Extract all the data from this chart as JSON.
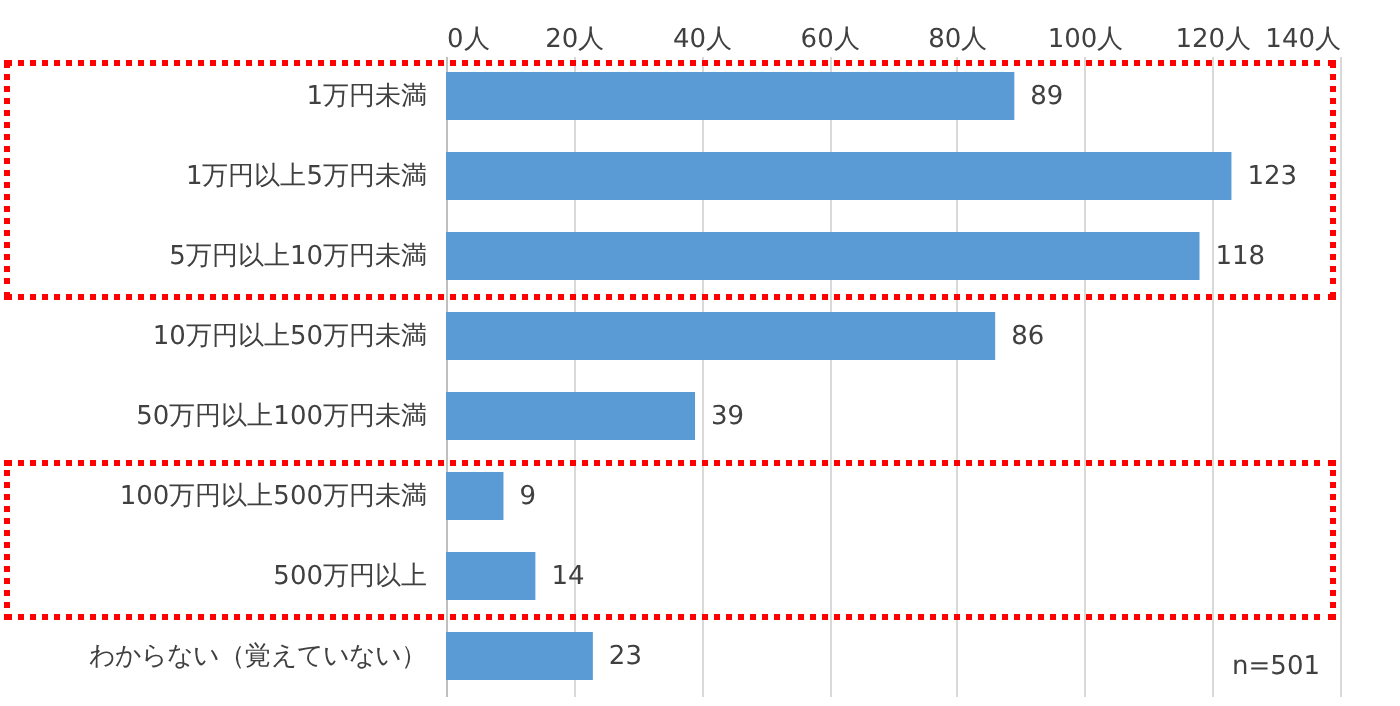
{
  "chart_data": {
    "type": "bar",
    "orientation": "horizontal",
    "categories": [
      "1万円未満",
      "1万円以上5万円未満",
      "5万円以上10万円未満",
      "10万円以上50万円未満",
      "50万円以上100万円未満",
      "100万円以上500万円未満",
      "500万円以上",
      "わからない（覚えていない）"
    ],
    "values": [
      89,
      123,
      118,
      86,
      39,
      9,
      14,
      23
    ],
    "color": "#5b9bd5",
    "xlim": [
      0,
      140
    ],
    "xticks": [
      {
        "value": 0,
        "label": "0人"
      },
      {
        "value": 20,
        "label": "20人"
      },
      {
        "value": 40,
        "label": "40人"
      },
      {
        "value": 60,
        "label": "60人"
      },
      {
        "value": 80,
        "label": "80人"
      },
      {
        "value": 100,
        "label": "100人"
      },
      {
        "value": 120,
        "label": "120人"
      },
      {
        "value": 140,
        "label": "140人"
      }
    ],
    "grid": "x",
    "data_labels": true,
    "annotations": [
      "n=501"
    ]
  }
}
